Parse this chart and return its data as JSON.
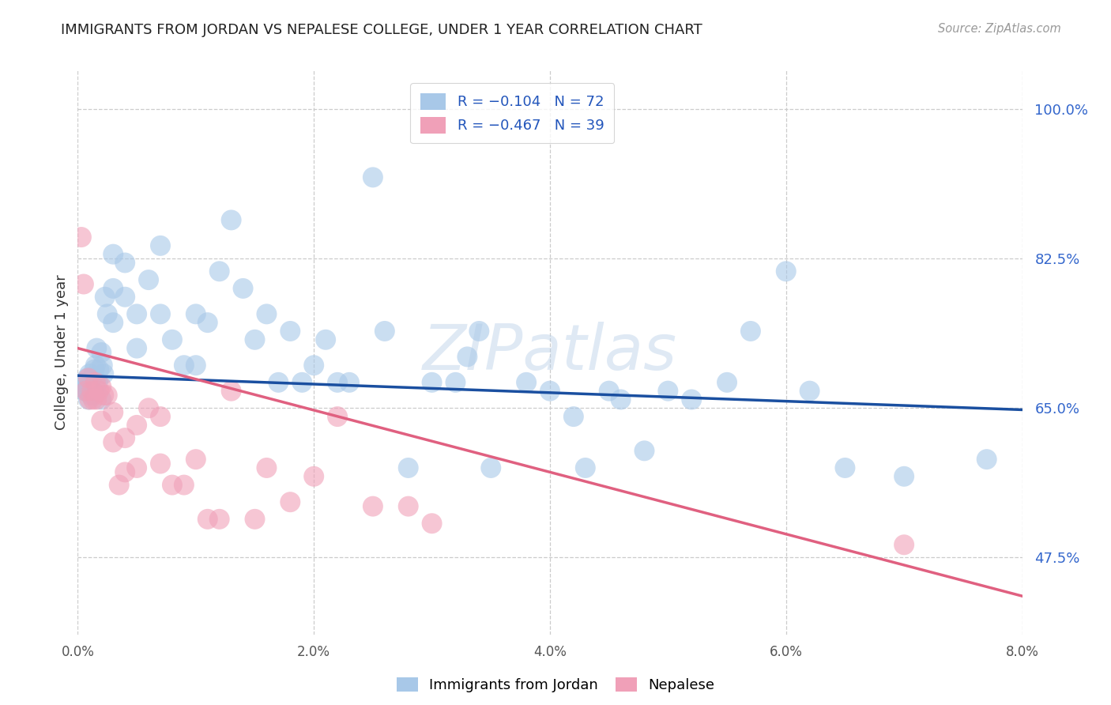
{
  "title": "IMMIGRANTS FROM JORDAN VS NEPALESE COLLEGE, UNDER 1 YEAR CORRELATION CHART",
  "source": "Source: ZipAtlas.com",
  "ylabel": "College, Under 1 year",
  "yticks_labels": [
    "47.5%",
    "65.0%",
    "82.5%",
    "100.0%"
  ],
  "ytick_vals": [
    0.475,
    0.65,
    0.825,
    1.0
  ],
  "xtick_vals": [
    0.0,
    0.02,
    0.04,
    0.06,
    0.08
  ],
  "xtick_labels": [
    "0.0%",
    "2.0%",
    "4.0%",
    "6.0%",
    "8.0%"
  ],
  "xmin": 0.0,
  "xmax": 0.08,
  "ymin": 0.385,
  "ymax": 1.045,
  "watermark": "ZIPatlas",
  "legend_labels_bottom": [
    "Immigrants from Jordan",
    "Nepalese"
  ],
  "blue_color": "#a8c8e8",
  "pink_color": "#f0a0b8",
  "line_blue": "#1a4fa0",
  "line_pink": "#e06080",
  "blue_line_x": [
    0.0,
    0.08
  ],
  "blue_line_y": [
    0.688,
    0.648
  ],
  "pink_line_x": [
    0.0,
    0.08
  ],
  "pink_line_y": [
    0.72,
    0.43
  ],
  "blue_scatter_x": [
    0.0003,
    0.0005,
    0.0006,
    0.0007,
    0.0008,
    0.0009,
    0.001,
    0.0011,
    0.0012,
    0.0013,
    0.0014,
    0.0015,
    0.0016,
    0.0017,
    0.0018,
    0.002,
    0.002,
    0.0021,
    0.0022,
    0.0023,
    0.0025,
    0.003,
    0.003,
    0.003,
    0.004,
    0.004,
    0.005,
    0.005,
    0.006,
    0.007,
    0.007,
    0.008,
    0.009,
    0.01,
    0.01,
    0.011,
    0.012,
    0.013,
    0.014,
    0.015,
    0.016,
    0.017,
    0.018,
    0.019,
    0.02,
    0.021,
    0.022,
    0.023,
    0.025,
    0.026,
    0.028,
    0.03,
    0.032,
    0.033,
    0.034,
    0.035,
    0.038,
    0.04,
    0.042,
    0.043,
    0.045,
    0.046,
    0.048,
    0.05,
    0.052,
    0.055,
    0.057,
    0.06,
    0.062,
    0.065,
    0.07,
    0.077
  ],
  "blue_scatter_y": [
    0.675,
    0.68,
    0.67,
    0.672,
    0.685,
    0.66,
    0.69,
    0.665,
    0.685,
    0.67,
    0.695,
    0.7,
    0.72,
    0.68,
    0.695,
    0.715,
    0.66,
    0.7,
    0.69,
    0.78,
    0.76,
    0.83,
    0.79,
    0.75,
    0.82,
    0.78,
    0.76,
    0.72,
    0.8,
    0.84,
    0.76,
    0.73,
    0.7,
    0.76,
    0.7,
    0.75,
    0.81,
    0.87,
    0.79,
    0.73,
    0.76,
    0.68,
    0.74,
    0.68,
    0.7,
    0.73,
    0.68,
    0.68,
    0.92,
    0.74,
    0.58,
    0.68,
    0.68,
    0.71,
    0.74,
    0.58,
    0.68,
    0.67,
    0.64,
    0.58,
    0.67,
    0.66,
    0.6,
    0.67,
    0.66,
    0.68,
    0.74,
    0.81,
    0.67,
    0.58,
    0.57,
    0.59
  ],
  "pink_scatter_x": [
    0.0003,
    0.0005,
    0.0007,
    0.0009,
    0.001,
    0.0012,
    0.0013,
    0.0015,
    0.0016,
    0.0018,
    0.002,
    0.002,
    0.0022,
    0.0025,
    0.003,
    0.003,
    0.0035,
    0.004,
    0.004,
    0.005,
    0.005,
    0.006,
    0.007,
    0.007,
    0.008,
    0.009,
    0.01,
    0.011,
    0.012,
    0.013,
    0.015,
    0.016,
    0.018,
    0.02,
    0.022,
    0.025,
    0.028,
    0.03,
    0.07
  ],
  "pink_scatter_y": [
    0.85,
    0.795,
    0.67,
    0.685,
    0.66,
    0.67,
    0.66,
    0.68,
    0.66,
    0.67,
    0.675,
    0.635,
    0.665,
    0.665,
    0.645,
    0.61,
    0.56,
    0.615,
    0.575,
    0.63,
    0.58,
    0.65,
    0.64,
    0.585,
    0.56,
    0.56,
    0.59,
    0.52,
    0.52,
    0.67,
    0.52,
    0.58,
    0.54,
    0.57,
    0.64,
    0.535,
    0.535,
    0.515,
    0.49
  ]
}
